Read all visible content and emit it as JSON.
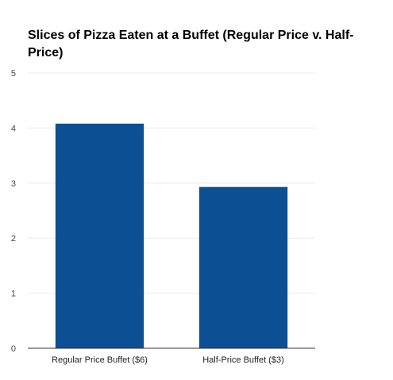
{
  "chart_data": {
    "type": "bar",
    "title": "Slices of Pizza Eaten at a Buffet (Regular Price v. Half-Price)",
    "xlabel": "",
    "ylabel": "",
    "categories": [
      "Regular Price Buffet ($6)",
      "Half-Price Buffet ($3)"
    ],
    "values": [
      4.08,
      2.93
    ],
    "ylim": [
      0,
      5
    ],
    "yticks": [
      "0",
      "1",
      "2",
      "3",
      "4",
      "5"
    ],
    "grid": true,
    "legend": "none",
    "bar_color": "#0d4f93"
  }
}
